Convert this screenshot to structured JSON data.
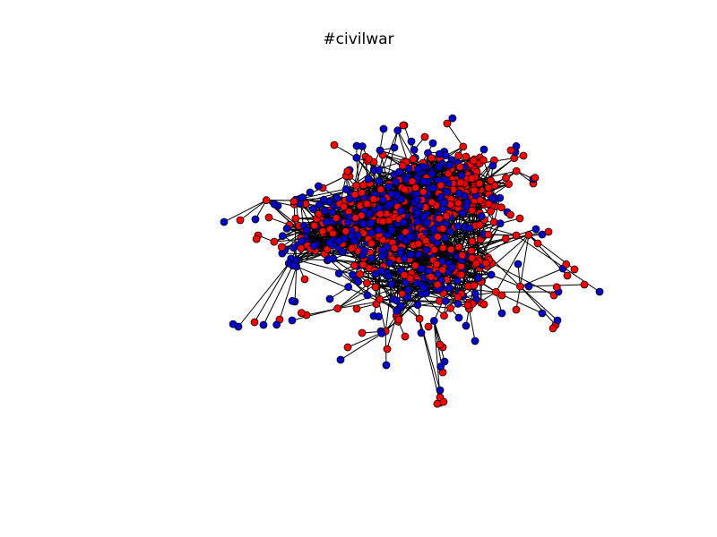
{
  "figure": {
    "title": "#civilwar"
  },
  "colors": {
    "background": "#ffffff",
    "edge": "#000000",
    "node_outline": "#000000",
    "group_a": "#ff0000",
    "group_b": "#0000cc"
  },
  "chart_data": {
    "type": "network",
    "node_groups": [
      {
        "color": "#ff0000"
      },
      {
        "color": "#0000cc"
      }
    ],
    "approx_node_count": 900,
    "grid": false,
    "axes_visible": false,
    "legend": "none"
  }
}
